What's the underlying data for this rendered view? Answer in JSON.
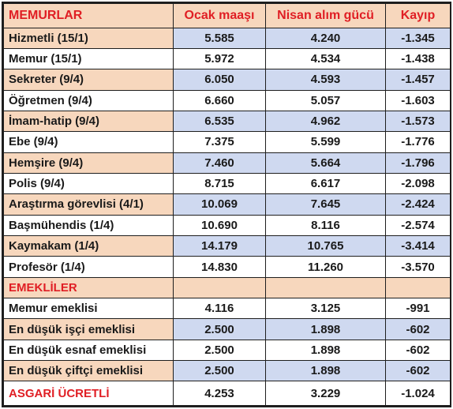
{
  "colors": {
    "accent_red": "#e01e24",
    "peach": "#f7d7bd",
    "light_blue": "#cfd9f0",
    "border": "#1e1e1e"
  },
  "header": {
    "name": "MEMURLAR",
    "ocak": "Ocak maaşı",
    "nisan": "Nisan alım gücü",
    "kayip": "Kayıp"
  },
  "memurlar": [
    {
      "name": "Hizmetli (15/1)",
      "ocak": "5.585",
      "nisan": "4.240",
      "kayip": "-1.345"
    },
    {
      "name": "Memur (15/1)",
      "ocak": "5.972",
      "nisan": "4.534",
      "kayip": "-1.438"
    },
    {
      "name": "Sekreter (9/4)",
      "ocak": "6.050",
      "nisan": "4.593",
      "kayip": "-1.457"
    },
    {
      "name": "Öğretmen (9/4)",
      "ocak": "6.660",
      "nisan": "5.057",
      "kayip": "-1.603"
    },
    {
      "name": "İmam-hatip (9/4)",
      "ocak": "6.535",
      "nisan": "4.962",
      "kayip": "-1.573"
    },
    {
      "name": "Ebe (9/4)",
      "ocak": "7.375",
      "nisan": "5.599",
      "kayip": "-1.776"
    },
    {
      "name": "Hemşire (9/4)",
      "ocak": "7.460",
      "nisan": "5.664",
      "kayip": "-1.796"
    },
    {
      "name": "Polis (9/4)",
      "ocak": "8.715",
      "nisan": "6.617",
      "kayip": "-2.098"
    },
    {
      "name": "Araştırma görevlisi (4/1)",
      "ocak": "10.069",
      "nisan": "7.645",
      "kayip": "-2.424"
    },
    {
      "name": "Başmühendis (1/4)",
      "ocak": "10.690",
      "nisan": "8.116",
      "kayip": "-2.574"
    },
    {
      "name": "Kaymakam (1/4)",
      "ocak": "14.179",
      "nisan": "10.765",
      "kayip": "-3.414"
    },
    {
      "name": "Profesör (1/4)",
      "ocak": "14.830",
      "nisan": "11.260",
      "kayip": "-3.570"
    }
  ],
  "emekliler_title": "EMEKLİLER",
  "emekliler": [
    {
      "name": "Memur emeklisi",
      "ocak": "4.116",
      "nisan": "3.125",
      "kayip": "-991"
    },
    {
      "name": "En düşük işçi emeklisi",
      "ocak": "2.500",
      "nisan": "1.898",
      "kayip": "-602"
    },
    {
      "name": "En düşük esnaf emeklisi",
      "ocak": "2.500",
      "nisan": "1.898",
      "kayip": "-602"
    },
    {
      "name": "En düşük çiftçi emeklisi",
      "ocak": "2.500",
      "nisan": "1.898",
      "kayip": "-602"
    }
  ],
  "asgari": {
    "name": "ASGARİ ÜCRETLİ",
    "ocak": "4.253",
    "nisan": "3.229",
    "kayip": "-1.024"
  }
}
